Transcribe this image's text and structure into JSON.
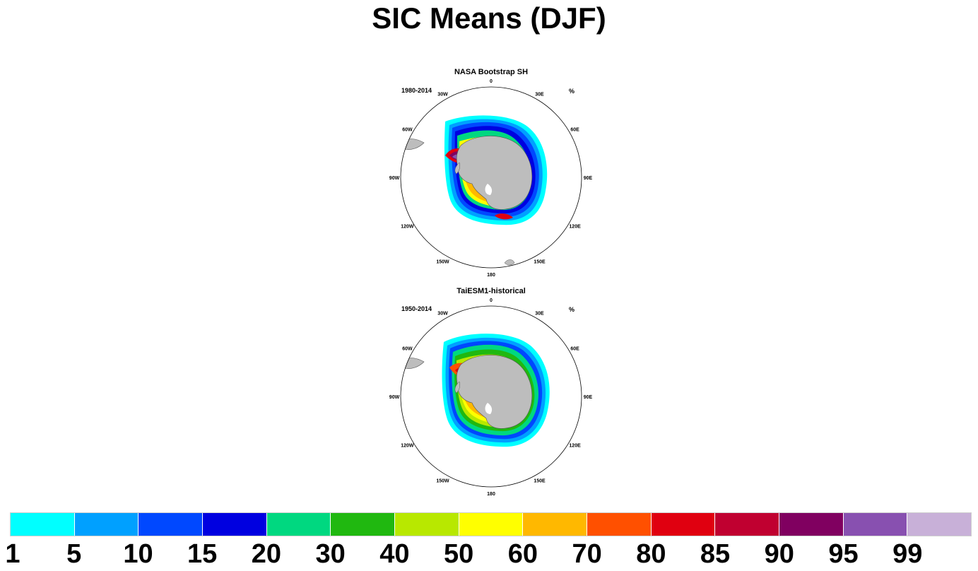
{
  "title": "SIC Means (DJF)",
  "colors": {
    "land": "#bdbdbd",
    "outline": "#000000"
  },
  "panels": [
    {
      "title": "NASA Bootstrap SH",
      "period": "1980-2014",
      "unit": "%",
      "lon_labels": [
        "0",
        "30E",
        "60E",
        "90E",
        "120E",
        "150E",
        "180",
        "150W",
        "120W",
        "90W",
        "60W",
        "30W"
      ]
    },
    {
      "title": "TaiESM1-historical",
      "period": "1950-2014",
      "unit": "%",
      "lon_labels": [
        "0",
        "30E",
        "60E",
        "90E",
        "120E",
        "150E",
        "180",
        "150W",
        "120W",
        "90W",
        "60W",
        "30W"
      ]
    }
  ],
  "colorbar": {
    "unit": "%",
    "colors": [
      "#00ffff",
      "#00a0ff",
      "#0048ff",
      "#0000e0",
      "#00d880",
      "#20b810",
      "#b8e800",
      "#ffff00",
      "#ffb800",
      "#ff5000",
      "#e00010",
      "#c00030",
      "#800060",
      "#8850b0",
      "#c8b0d8"
    ],
    "labels": [
      "1",
      "5",
      "10",
      "15",
      "20",
      "30",
      "40",
      "50",
      "60",
      "70",
      "80",
      "85",
      "90",
      "95",
      "99"
    ]
  }
}
